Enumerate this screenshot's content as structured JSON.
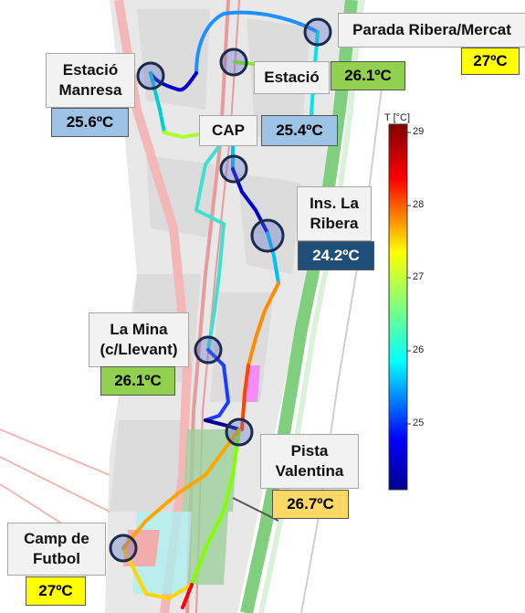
{
  "legend": {
    "title": "T [°C]",
    "ticks": [
      "29",
      "28",
      "27",
      "26",
      "25"
    ]
  },
  "stations": {
    "parada_ribera": {
      "name": "Parada Ribera/Mercat",
      "temp": "27ºC"
    },
    "estacio_manresa": {
      "name_line1": "Estació",
      "name_line2": "Manresa",
      "temp": "25.6ºC"
    },
    "estacio": {
      "name": "Estació",
      "temp": "26.1ºC"
    },
    "cap": {
      "name": "CAP",
      "temp": "25.4ºC"
    },
    "ins_la_ribera": {
      "name_line1": "Ins. La",
      "name_line2": "Ribera",
      "temp": "24.2ºC"
    },
    "la_mina": {
      "name_line1": "La Mina",
      "name_line2": "(c/Llevant)",
      "temp": "26.1ºC"
    },
    "pista_valentina": {
      "name_line1": "Pista",
      "name_line2": "Valentina",
      "temp": "26.7ºC"
    },
    "camp_de_futbol": {
      "name_line1": "Camp de",
      "name_line2": "Futbol",
      "temp": "27ºC"
    }
  },
  "colors": {
    "yellow_box": "#ffff00",
    "green_box": "#92d050",
    "light_blue_box": "#9dc3e6",
    "dark_blue_box": "#1f4e79",
    "orange_box": "#ffd966",
    "river_green": "#7fcf7f"
  }
}
